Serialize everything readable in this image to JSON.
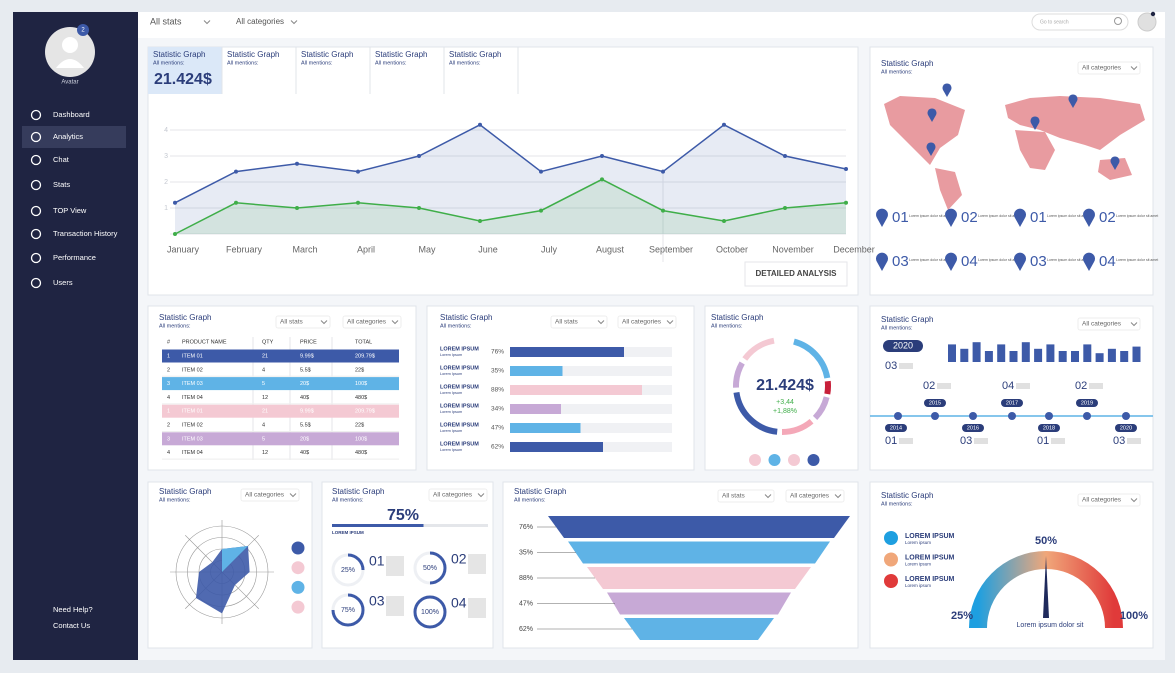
{
  "sidebar": {
    "avatar": "Avatar",
    "badge": "2",
    "menu": [
      "Dashboard",
      "Analytics",
      "Chat",
      "Stats",
      "TOP View",
      "Transaction History",
      "Performance",
      "Users"
    ],
    "active": 1,
    "help": "Need Help?",
    "contact": "Contact Us"
  },
  "topbar": {
    "filters": [
      "All stats",
      "All categories"
    ],
    "search": "Go to search"
  },
  "line_panel": {
    "tabs": [
      {
        "title": "Statistic Graph",
        "subtitle": "All mentions:"
      },
      {
        "title": "Statistic Graph",
        "subtitle": "All mentions:"
      },
      {
        "title": "Statistic Graph",
        "subtitle": "All mentions:"
      },
      {
        "title": "Statistic Graph",
        "subtitle": "All mentions:"
      },
      {
        "title": "Statistic Graph",
        "subtitle": "All mentions:"
      }
    ],
    "total": "21.424$",
    "button": "DETAILED ANALYSIS",
    "chart": {
      "type": "line",
      "categories": [
        "January",
        "February",
        "March",
        "April",
        "May",
        "June",
        "July",
        "August",
        "September",
        "October",
        "November",
        "December"
      ],
      "ylim": [
        0,
        4.5
      ],
      "yticks": [
        1,
        2,
        3,
        4
      ],
      "grid": true,
      "series": [
        {
          "color": "#3d5aa8",
          "values": [
            1.2,
            2.4,
            2.7,
            2.4,
            3.0,
            4.2,
            2.4,
            3.0,
            2.4,
            4.2,
            3.0,
            2.5
          ]
        },
        {
          "color": "#3fae49",
          "values": [
            0,
            1.2,
            1.0,
            1.2,
            1.0,
            0.5,
            0.9,
            2.1,
            0.9,
            0.5,
            1.0,
            1.2
          ]
        }
      ]
    }
  },
  "map_panel": {
    "title": "Statistic Graph",
    "subtitle": "All mentions:",
    "dropdown": "All categories",
    "color": "#e89ba0",
    "pins": [
      {
        "number": "01",
        "text": "Lorem ipsum dolor sit amet"
      },
      {
        "number": "02",
        "text": "Lorem ipsum dolor sit amet"
      },
      {
        "number": "01",
        "text": "Lorem ipsum dolor sit amet"
      },
      {
        "number": "02",
        "text": "Lorem ipsum dolor sit amet"
      },
      {
        "number": "03",
        "text": "Lorem ipsum dolor sit amet"
      },
      {
        "number": "04",
        "text": "Lorem ipsum dolor sit amet"
      },
      {
        "number": "03",
        "text": "Lorem ipsum dolor sit amet"
      },
      {
        "number": "04",
        "text": "Lorem ipsum dolor sit amet"
      }
    ]
  },
  "table_panel": {
    "title": "Statistic Graph",
    "subtitle": "All mentions:",
    "dropdowns": [
      "All stats",
      "All categories"
    ],
    "table": {
      "headers": [
        "#",
        "PRODUCT NAME",
        "QTY",
        "PRICE",
        "TOTAL"
      ],
      "rows": [
        [
          "1",
          "ITEM 01",
          "21",
          "9.99$",
          "209.79$"
        ],
        [
          "2",
          "ITEM 02",
          "4",
          "5.5$",
          "22$"
        ],
        [
          "3",
          "ITEM 03",
          "5",
          "20$",
          "100$"
        ],
        [
          "4",
          "ITEM 04",
          "12",
          "40$",
          "480$"
        ],
        [
          "1",
          "ITEM 01",
          "21",
          "9.99$",
          "209.79$"
        ],
        [
          "2",
          "ITEM 02",
          "4",
          "5.5$",
          "22$"
        ],
        [
          "3",
          "ITEM 03",
          "5",
          "20$",
          "100$"
        ],
        [
          "4",
          "ITEM 04",
          "12",
          "40$",
          "480$"
        ]
      ],
      "row_colors": [
        "#3d5aa8",
        null,
        "#5fb3e6",
        null,
        "#f4c9d3",
        null,
        "#c7a9d6",
        null
      ]
    }
  },
  "bars_panel": {
    "title": "Statistic Graph",
    "subtitle": "All mentions:",
    "dropdowns": [
      "All stats",
      "All categories"
    ],
    "chart": {
      "type": "bar",
      "orientation": "horizontal",
      "xlim": [
        0,
        100
      ],
      "categories": [
        "LOREM IPSUM",
        "LOREM IPSUM",
        "LOREM IPSUM",
        "LOREM IPSUM",
        "LOREM IPSUM",
        "LOREM IPSUM"
      ],
      "sublabels": [
        "Lorem Ipsum",
        "Lorem Ipsum",
        "Lorem Ipsum",
        "Lorem Ipsum",
        "Lorem Ipsum",
        "Lorem Ipsum"
      ],
      "values": [
        76,
        35,
        88,
        34,
        47,
        62
      ],
      "value_labels": [
        "76%",
        "35%",
        "88%",
        "34%",
        "47%",
        "62%"
      ],
      "colors": [
        "#3d5aa8",
        "#5fb3e6",
        "#f4c9d3",
        "#c7a9d6",
        "#5fb3e6",
        "#3d5aa8"
      ]
    }
  },
  "donut_panel": {
    "title": "Statistic Graph",
    "subtitle": "All mentions:",
    "total": "21.424$",
    "changes": [
      "+3,44",
      "+1,88%"
    ],
    "ring_colors": [
      "#5fb3e6",
      "#c8203a",
      "#c7a9d6",
      "#f4a8b8",
      "#3d5aa8",
      "#c7a9d6",
      "#f4c9d3"
    ],
    "dot_colors": [
      "#f4c9d3",
      "#5fb3e6",
      "#f4c9d3",
      "#3d5aa8"
    ]
  },
  "timeline_panel": {
    "title": "Statistic Graph",
    "subtitle": "All mentions:",
    "dropdown": "All categories",
    "chart": {
      "type": "bar",
      "ylim": [
        0,
        10
      ],
      "color": "#3d5aa8",
      "values": [
        8,
        6,
        9,
        5,
        8,
        5,
        9,
        6,
        8,
        5,
        5,
        8,
        4,
        6,
        5,
        7
      ]
    },
    "years": [
      "2020",
      "2015",
      "2017",
      "2019",
      "2014",
      "2016",
      "2018",
      "2020"
    ],
    "numbers": [
      "03",
      "02",
      "04",
      "02",
      "01",
      "03",
      "01",
      "03"
    ]
  },
  "radar_panel": {
    "title": "Statistic Graph",
    "subtitle": "All mentions:",
    "dropdown": "All categories",
    "chart": {
      "type": "radar",
      "rlim": [
        0,
        10
      ],
      "color": "#3d5aa8",
      "values": [
        5,
        8,
        6,
        4,
        9,
        8,
        5,
        3
      ]
    },
    "legend_colors": [
      "#3d5aa8",
      "#f4c9d3",
      "#5fb3e6",
      "#f4c9d3"
    ]
  },
  "progress_panel": {
    "title": "Statistic Graph",
    "subtitle": "All mentions:",
    "dropdown": "All categories",
    "total": {
      "value": 75,
      "label": "75%",
      "caption": "LOREM IPSUM"
    },
    "rings": {
      "values": [
        25,
        50,
        75,
        100
      ],
      "value_labels": [
        "25%",
        "50%",
        "75%",
        "100%"
      ],
      "numbers": [
        "01",
        "02",
        "03",
        "04"
      ]
    }
  },
  "funnel_panel": {
    "title": "Statistic Graph",
    "subtitle": "All mentions:",
    "dropdowns": [
      "All stats",
      "All categories"
    ],
    "chart": {
      "type": "funnel",
      "values": [
        76,
        35,
        88,
        47,
        62
      ],
      "value_labels": [
        "76%",
        "35%",
        "88%",
        "47%",
        "62%"
      ],
      "colors": [
        "#3d5aa8",
        "#5fb3e6",
        "#f4c9d3",
        "#c7a9d6",
        "#5fb3e6"
      ]
    }
  },
  "gauge_panel": {
    "title": "Statistic Graph",
    "subtitle": "All mentions:",
    "dropdown": "All categories",
    "legend": [
      {
        "title": "LOREM IPSUM",
        "text": "Lorem ipsum",
        "color": "#1e9fe0"
      },
      {
        "title": "LOREM IPSUM",
        "text": "Lorem ipsum",
        "color": "#f0a77a"
      },
      {
        "title": "LOREM IPSUM",
        "text": "Lorem ipsum",
        "color": "#e03a3a"
      }
    ],
    "labels": [
      "25%",
      "50%",
      "100%"
    ],
    "caption": "Lorem ipsum dolor sit"
  }
}
